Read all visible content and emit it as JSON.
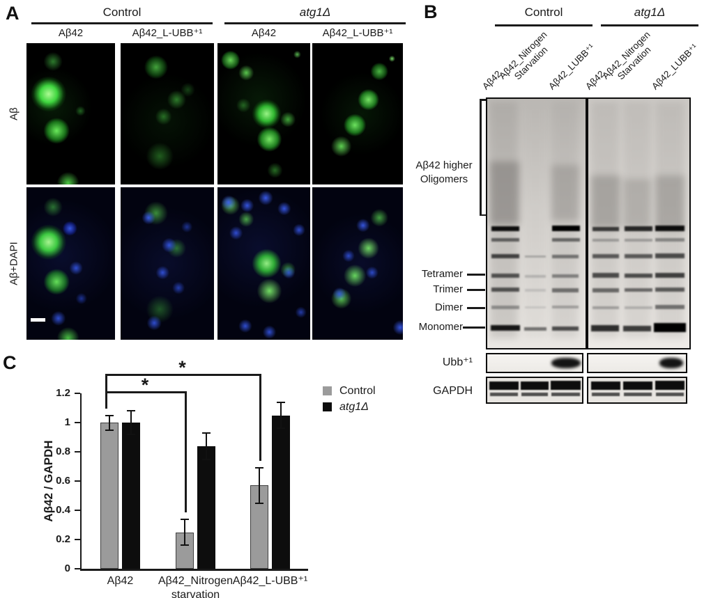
{
  "panelA": {
    "label": "A",
    "groups": [
      {
        "title": "Control"
      },
      {
        "title": "atg1Δ"
      }
    ],
    "col_labels": [
      "Aβ42",
      "Aβ42_L-UBB⁺¹",
      "Aβ42",
      "Aβ42_L-UBB⁺¹"
    ],
    "row_labels": [
      "Aβ",
      "Aβ+DAPI"
    ]
  },
  "panelB": {
    "label": "B",
    "groups": [
      {
        "title": "Control"
      },
      {
        "title": "atg1Δ"
      }
    ],
    "lane_labels": [
      "Aβ42",
      "Aβ42_Nitrogen Starvation",
      "Aβ42_LUBB⁺¹",
      "Aβ42",
      "Aβ42_Nitrogen Starvation",
      "Aβ42_LUBB⁺¹"
    ],
    "oligomer_label": "Aβ42 higher Oligomers",
    "band_labels": [
      "Tetramer",
      "Trimer",
      "Dimer",
      "Monomer"
    ],
    "probe_labels": [
      "Ubb⁺¹",
      "GAPDH"
    ]
  },
  "panelC": {
    "label": "C"
  },
  "chart_data": {
    "type": "bar",
    "categories": [
      "Aβ42",
      "Aβ42_Nitrogen starvation",
      "Aβ42_L-UBB⁺¹"
    ],
    "series": [
      {
        "name": "Control",
        "color": "#9b9b9b",
        "italic": false,
        "values": [
          1.0,
          0.25,
          0.57
        ],
        "errors": [
          0.05,
          0.09,
          0.12
        ]
      },
      {
        "name": "atg1Δ",
        "color": "#0d0d0d",
        "italic": true,
        "values": [
          1.0,
          0.84,
          1.05
        ],
        "errors": [
          0.08,
          0.09,
          0.09
        ]
      }
    ],
    "title": "",
    "xlabel": "",
    "ylabel": "Aβ42 / GAPDH",
    "ylim": [
      0,
      1.2
    ],
    "yticks": [
      0,
      0.2,
      0.4,
      0.6,
      0.8,
      1,
      1.2
    ],
    "grid": false,
    "legend_position": "right",
    "significance": [
      {
        "from": 0,
        "to": 1,
        "label": "*"
      },
      {
        "from": 0,
        "to": 2,
        "label": "*"
      }
    ]
  }
}
